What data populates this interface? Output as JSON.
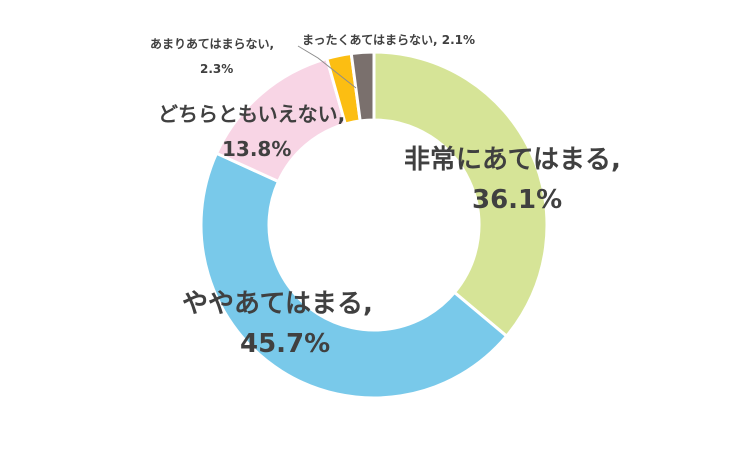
{
  "chart_data": {
    "type": "pie",
    "donut": true,
    "start": "top",
    "direction": "clockwise",
    "categories": [
      "非常にあてはまる",
      "ややあてはまる",
      "どちらともいえない",
      "あまりあてはまらない",
      "まったくあてはまらない"
    ],
    "values": [
      36.1,
      45.7,
      13.8,
      2.3,
      2.1
    ],
    "colors": [
      "#d6e497",
      "#79c9ea",
      "#f8d5e5",
      "#fcbe12",
      "#7a706d"
    ],
    "labels": [
      {
        "name": "非常にあてはまる,",
        "value": "36.1%"
      },
      {
        "name": "ややあてはまる,",
        "value": "45.7%"
      },
      {
        "name": "どちらともいえない,",
        "value": "13.8%"
      },
      {
        "name": "あまりあてはまらない,",
        "value": "2.3%"
      },
      {
        "name": "まったくあてはまらない, 2.1%",
        "value": ""
      }
    ]
  }
}
